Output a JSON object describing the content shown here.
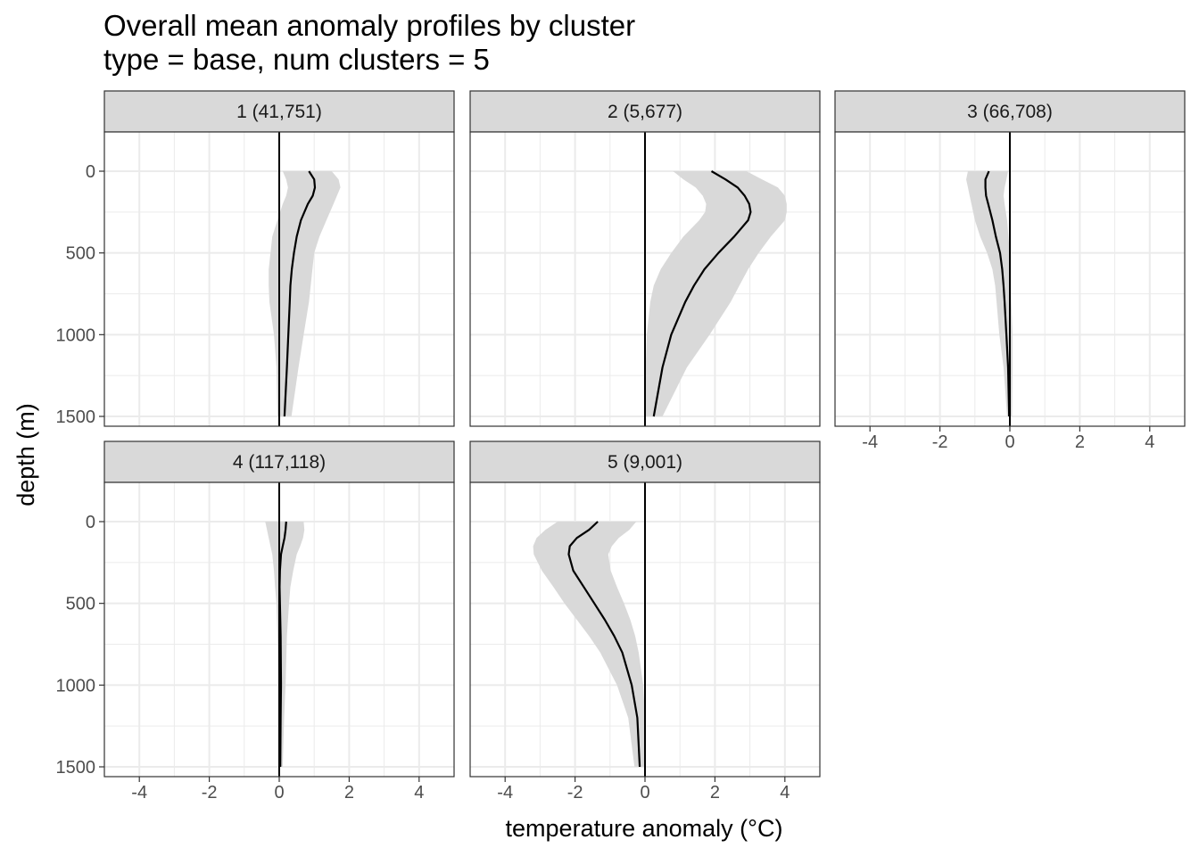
{
  "chart_data": {
    "type": "line",
    "title": "Overall mean anomaly profiles by cluster",
    "subtitle": "type = base, num clusters = 5",
    "xlabel": "temperature anomaly (°C)",
    "ylabel": "depth (m)",
    "xlim": [
      -5,
      5
    ],
    "ylim": [
      1560,
      -240
    ],
    "y_reversed": true,
    "x_ticks": [
      -4,
      -2,
      0,
      2,
      4
    ],
    "x_tick_labels": [
      "-4",
      "-2",
      "0",
      "2",
      "4"
    ],
    "y_ticks": [
      0,
      500,
      1000,
      1500
    ],
    "y_tick_labels": [
      "0",
      "500",
      "1000",
      "1500"
    ],
    "grid": true,
    "vline_x": 0,
    "colors": {
      "line": "#000000",
      "ribbon": "#d9d9d9",
      "strip": "#d9d9d9",
      "grid": "#ebebeb"
    },
    "panels": [
      {
        "label": "1 (41,751)",
        "depth": [
          0,
          50,
          100,
          150,
          200,
          300,
          400,
          500,
          600,
          700,
          800,
          1000,
          1200,
          1500
        ],
        "mean": [
          0.85,
          1.0,
          1.02,
          0.96,
          0.82,
          0.62,
          0.5,
          0.42,
          0.36,
          0.32,
          0.3,
          0.26,
          0.22,
          0.15
        ],
        "lower": [
          0.1,
          0.2,
          0.25,
          0.2,
          0.1,
          -0.05,
          -0.2,
          -0.25,
          -0.3,
          -0.3,
          -0.28,
          -0.15,
          -0.08,
          -0.05
        ],
        "upper": [
          1.5,
          1.7,
          1.75,
          1.65,
          1.55,
          1.35,
          1.15,
          1.0,
          0.95,
          0.9,
          0.85,
          0.7,
          0.55,
          0.35
        ]
      },
      {
        "label": "2 (5,677)",
        "depth": [
          0,
          50,
          100,
          150,
          200,
          250,
          300,
          400,
          500,
          600,
          700,
          800,
          1000,
          1200,
          1500
        ],
        "mean": [
          1.9,
          2.3,
          2.65,
          2.85,
          2.98,
          3.02,
          2.95,
          2.55,
          2.1,
          1.7,
          1.4,
          1.15,
          0.75,
          0.5,
          0.25
        ],
        "lower": [
          0.8,
          1.1,
          1.45,
          1.65,
          1.75,
          1.72,
          1.55,
          1.1,
          0.75,
          0.45,
          0.25,
          0.15,
          0.05,
          0.02,
          0.02
        ],
        "upper": [
          2.9,
          3.35,
          3.8,
          4.0,
          4.05,
          4.05,
          4.0,
          3.6,
          3.25,
          2.95,
          2.7,
          2.45,
          1.85,
          1.2,
          0.5
        ]
      },
      {
        "label": "3 (66,708)",
        "depth": [
          0,
          50,
          100,
          150,
          200,
          300,
          400,
          500,
          600,
          700,
          800,
          1000,
          1200,
          1500
        ],
        "mean": [
          -0.6,
          -0.7,
          -0.7,
          -0.68,
          -0.62,
          -0.5,
          -0.4,
          -0.28,
          -0.22,
          -0.18,
          -0.15,
          -0.1,
          -0.05,
          -0.02
        ],
        "lower": [
          -1.2,
          -1.25,
          -1.2,
          -1.15,
          -1.1,
          -1.0,
          -0.85,
          -0.65,
          -0.5,
          -0.42,
          -0.38,
          -0.3,
          -0.18,
          -0.08
        ],
        "upper": [
          -0.05,
          -0.1,
          -0.15,
          -0.18,
          -0.15,
          -0.08,
          -0.04,
          0.0,
          0.02,
          0.03,
          0.04,
          0.08,
          0.08,
          0.06
        ]
      },
      {
        "label": "4 (117,118)",
        "depth": [
          0,
          50,
          100,
          150,
          200,
          300,
          400,
          500,
          700,
          1000,
          1200,
          1500
        ],
        "mean": [
          0.2,
          0.18,
          0.15,
          0.1,
          0.05,
          0.02,
          0.01,
          0.02,
          0.04,
          0.05,
          0.04,
          0.03
        ],
        "lower": [
          -0.4,
          -0.35,
          -0.3,
          -0.25,
          -0.2,
          -0.15,
          -0.12,
          -0.08,
          -0.05,
          -0.02,
          -0.02,
          -0.01
        ],
        "upper": [
          0.7,
          0.72,
          0.68,
          0.6,
          0.5,
          0.4,
          0.32,
          0.28,
          0.22,
          0.18,
          0.14,
          0.1
        ]
      },
      {
        "label": "5 (9,001)",
        "depth": [
          0,
          50,
          100,
          150,
          200,
          300,
          400,
          500,
          600,
          700,
          800,
          1000,
          1200,
          1500
        ],
        "mean": [
          -1.35,
          -1.6,
          -1.95,
          -2.15,
          -2.18,
          -2.05,
          -1.75,
          -1.45,
          -1.15,
          -0.88,
          -0.65,
          -0.38,
          -0.22,
          -0.15
        ],
        "lower": [
          -2.5,
          -2.85,
          -3.1,
          -3.2,
          -3.18,
          -2.95,
          -2.62,
          -2.3,
          -1.95,
          -1.6,
          -1.28,
          -0.8,
          -0.48,
          -0.3
        ],
        "upper": [
          -0.25,
          -0.45,
          -0.75,
          -0.95,
          -1.05,
          -0.98,
          -0.8,
          -0.6,
          -0.42,
          -0.28,
          -0.18,
          -0.05,
          0.0,
          0.0
        ]
      }
    ]
  }
}
